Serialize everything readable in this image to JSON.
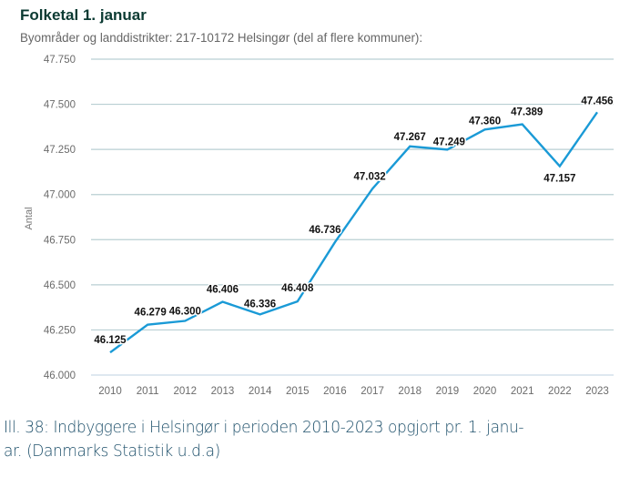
{
  "chart_data": {
    "type": "line",
    "title": "Folketal 1. januar",
    "subtitle": "Byområder og landdistrikter: 217-10172 Helsingør (del af flere kommuner):",
    "xlabel": "",
    "ylabel": "Antal",
    "categories": [
      "2010",
      "2011",
      "2012",
      "2013",
      "2014",
      "2015",
      "2016",
      "2017",
      "2018",
      "2019",
      "2020",
      "2021",
      "2022",
      "2023"
    ],
    "series": [
      {
        "name": "Folketal",
        "values": [
          46125,
          46279,
          46300,
          46406,
          46336,
          46408,
          46736,
          47032,
          47267,
          47249,
          47360,
          47389,
          47157,
          47456
        ],
        "labels": [
          "46.125",
          "46.279",
          "46.300",
          "46.406",
          "46.336",
          "46.408",
          "46.736",
          "47.032",
          "47.267",
          "47.249",
          "47.360",
          "47.389",
          "47.157",
          "47.456"
        ],
        "color": "#1a9ad6"
      }
    ],
    "ylim": [
      46000,
      47750
    ],
    "yticks": [
      46000,
      46250,
      46500,
      46750,
      47000,
      47250,
      47500,
      47750
    ],
    "ytick_labels": [
      "46.000",
      "46.250",
      "46.500",
      "46.750",
      "47.000",
      "47.250",
      "47.500",
      "47.750"
    ],
    "grid": true,
    "legend": "none"
  },
  "caption": {
    "line1": "Ill. 38: Indbyggere i Helsingør i perioden 2010-2023 opgjort pr. 1. janu-",
    "line2": "ar. (Danmarks Statistik u.d.a)"
  }
}
